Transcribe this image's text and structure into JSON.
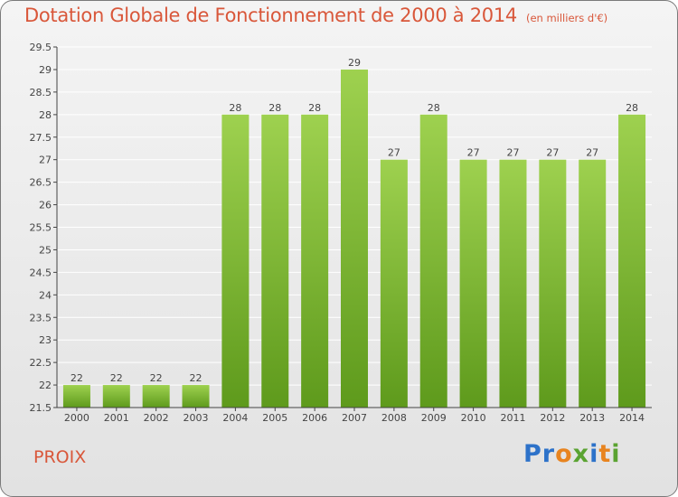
{
  "header": {
    "title": "Dotation Globale de Fonctionnement de 2000 à 2014",
    "subtitle": "(en milliers d'€)"
  },
  "footer": {
    "commune": "PROIX",
    "logo": "Proxiti"
  },
  "colors": {
    "title": "#d9573a",
    "bar_top": "#9ed14f",
    "bar_bottom": "#5e9a1c",
    "grid": "#ffffff",
    "axis": "#444444"
  },
  "chart_data": {
    "type": "bar",
    "title": "Dotation Globale de Fonctionnement de 2000 à 2014",
    "unit": "(en milliers d'€)",
    "xlabel": "",
    "ylabel": "",
    "categories": [
      "2000",
      "2001",
      "2002",
      "2003",
      "2004",
      "2005",
      "2006",
      "2007",
      "2008",
      "2009",
      "2010",
      "2011",
      "2012",
      "2013",
      "2014"
    ],
    "values": [
      22,
      22,
      22,
      22,
      28,
      28,
      28,
      29,
      27,
      28,
      27,
      27,
      27,
      27,
      28
    ],
    "ylim": [
      21.5,
      29.5
    ],
    "yticks": [
      "21.5",
      "22",
      "22.5",
      "23",
      "23.5",
      "24",
      "24.5",
      "25",
      "25.5",
      "26",
      "26.5",
      "27",
      "27.5",
      "28",
      "28.5",
      "29",
      "29.5"
    ],
    "grid": true
  }
}
